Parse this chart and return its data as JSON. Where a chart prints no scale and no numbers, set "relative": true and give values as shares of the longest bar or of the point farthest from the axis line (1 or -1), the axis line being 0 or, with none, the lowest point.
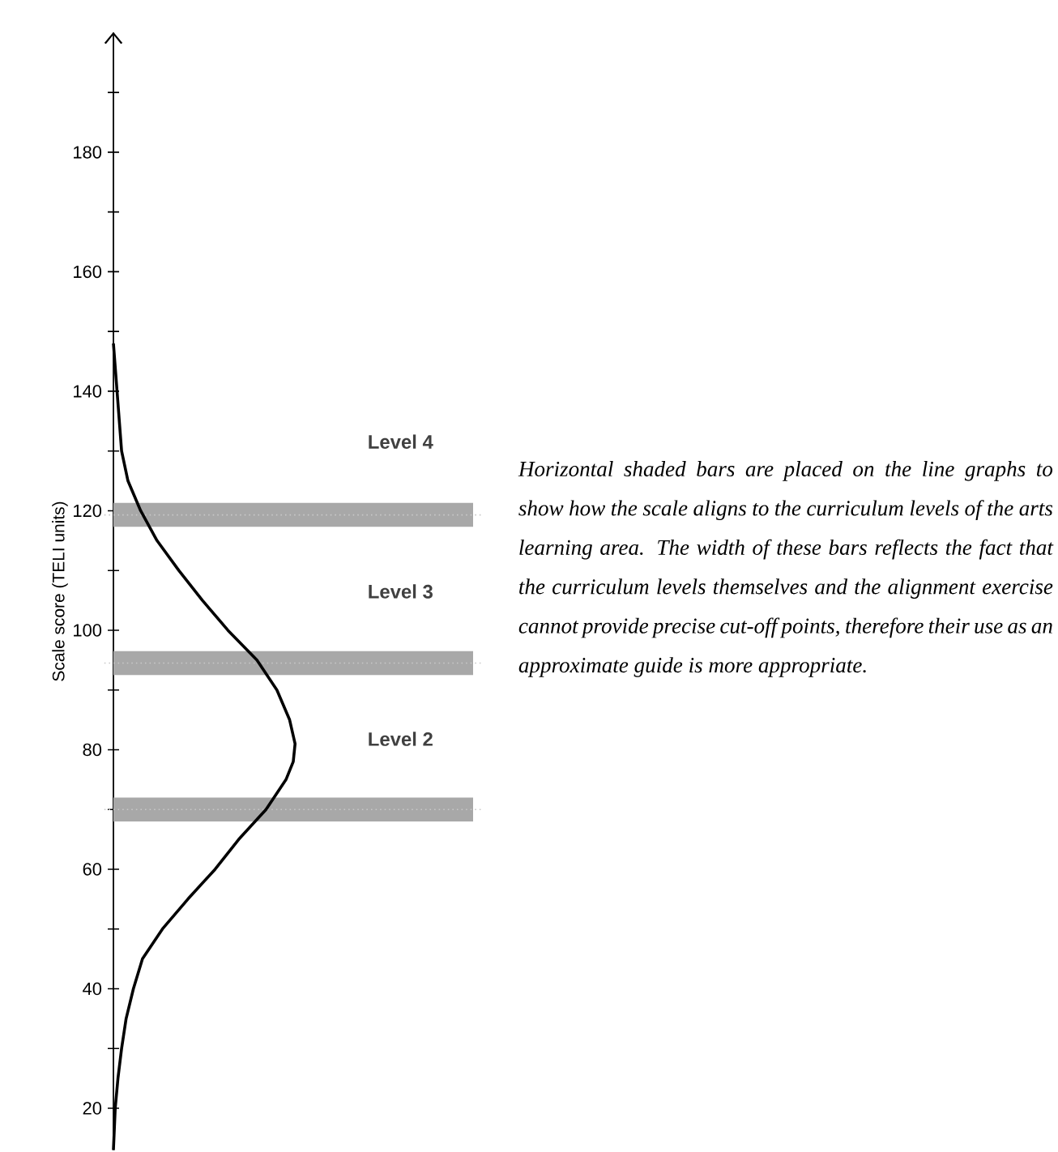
{
  "chart_data": {
    "type": "line",
    "ylabel": "Scale score (TELI units)",
    "orientation": "horizontal",
    "relative": true,
    "x": [
      13,
      20,
      25,
      30,
      35,
      40,
      45,
      50,
      55,
      60,
      65,
      70,
      75,
      78,
      81,
      85,
      90,
      95,
      100,
      105,
      110,
      115,
      120,
      125,
      130,
      140,
      148
    ],
    "values": [
      0,
      0.01,
      0.025,
      0.045,
      0.07,
      0.11,
      0.16,
      0.27,
      0.41,
      0.56,
      0.69,
      0.84,
      0.95,
      0.99,
      1,
      0.97,
      0.9,
      0.79,
      0.63,
      0.49,
      0.36,
      0.24,
      0.15,
      0.08,
      0.045,
      0.02,
      0
    ],
    "color": "#000000",
    "ylim": [
      13,
      200
    ],
    "yticks": [
      20,
      {
        "value": 30,
        "label": null
      },
      40,
      {
        "value": 50,
        "label": null
      },
      60,
      {
        "value": 70,
        "label": null
      },
      80,
      {
        "value": 90,
        "label": null
      },
      100,
      {
        "value": 110,
        "label": null
      },
      120,
      {
        "value": 130,
        "label": null
      },
      140,
      {
        "value": 150,
        "label": null
      },
      160,
      {
        "value": 170,
        "label": null
      },
      180,
      {
        "value": 190,
        "label": null
      }
    ],
    "tick_labels": "y",
    "bands": [
      {
        "axis": "y",
        "from": 68,
        "to": 72,
        "color": "#a8a8a8"
      },
      {
        "axis": "y",
        "from": 92.5,
        "to": 96.5,
        "color": "#a8a8a8"
      },
      {
        "axis": "y",
        "from": 117.3,
        "to": 121.3,
        "color": "#a8a8a8"
      }
    ],
    "ref_lines": [
      {
        "axis": "y",
        "value": 70,
        "color": "#c8c8c8",
        "line_style": "dotted"
      },
      {
        "axis": "y",
        "value": 94.5,
        "color": "#c8c8c8",
        "line_style": "dotted"
      },
      {
        "axis": "y",
        "value": 119.3,
        "color": "#c8c8c8",
        "line_style": "dotted"
      }
    ],
    "annotations": [
      "Level 4",
      "Level 3",
      "Level 2",
      "Horizontal shaded bars are placed on the line graphs to show how the scale aligns to the curriculum levels of the arts learning area. The width of these bars reflects the fact that the curriculum levels themselves and the alignment exercise cannot provide precise cut-off points, therefore their use as an approximate guide is more appropriate."
    ],
    "grid": false,
    "marker": "none",
    "line_style": "solid"
  }
}
